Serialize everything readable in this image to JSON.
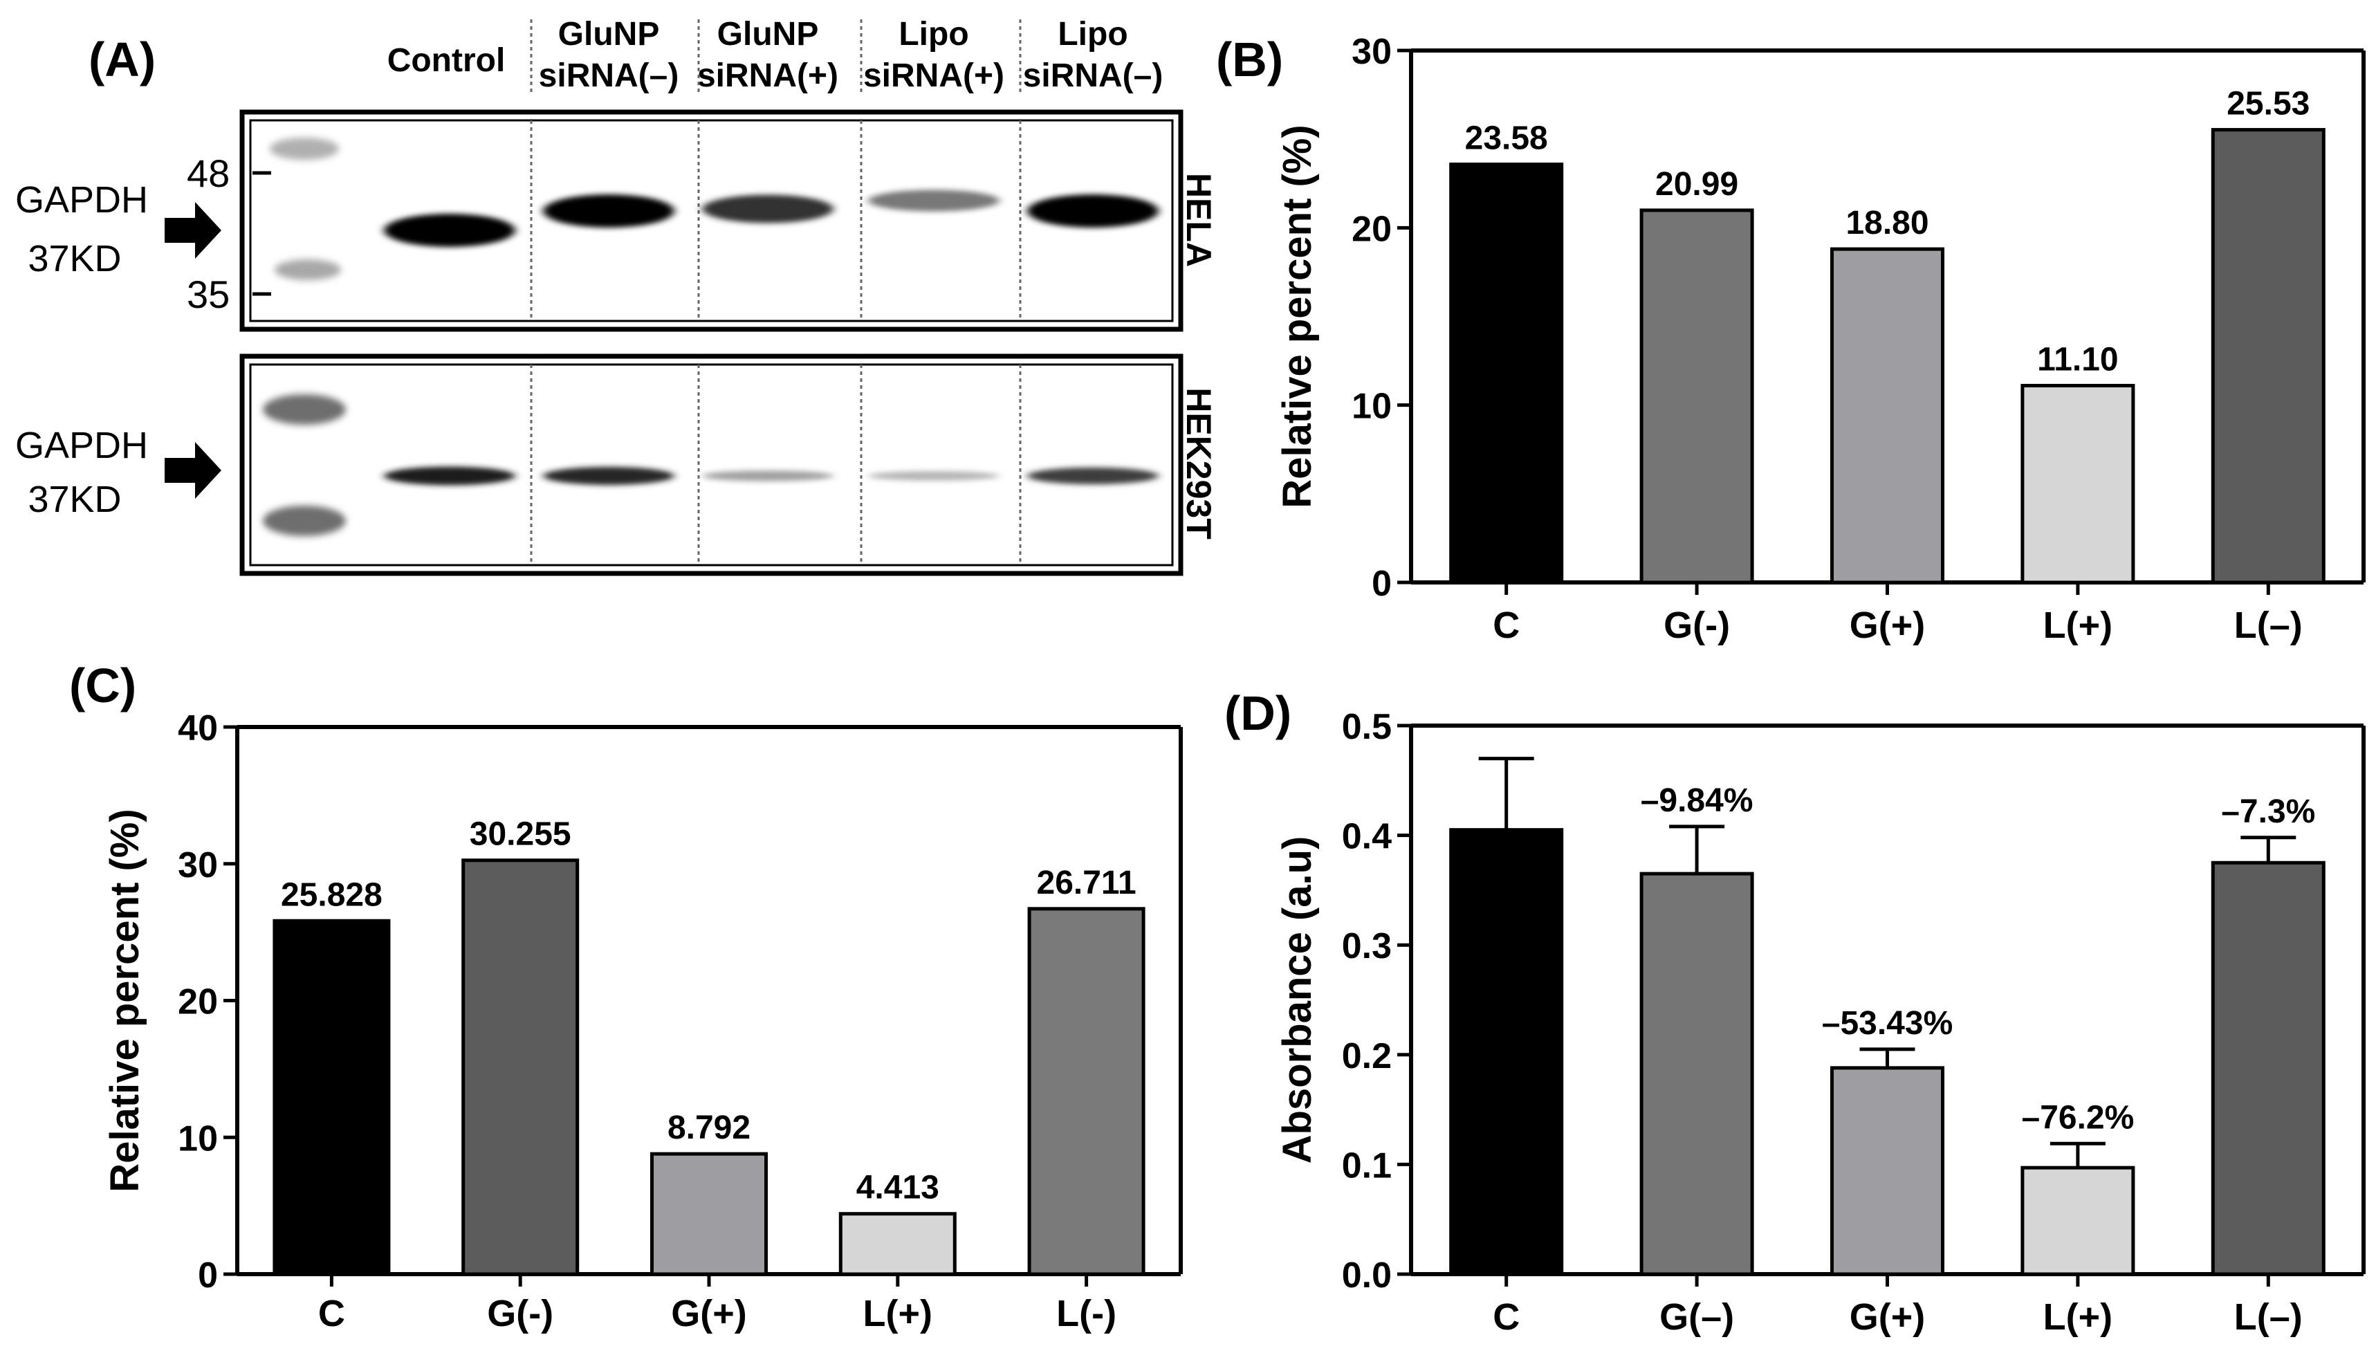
{
  "panel_labels": {
    "a": "(A)",
    "b": "(B)",
    "c": "(C)",
    "d": "(D)"
  },
  "blot": {
    "lanes": [
      {
        "l1": "Control",
        "l2": ""
      },
      {
        "l1": "GluNP",
        "l2": "siRNA(–)"
      },
      {
        "l1": "GluNP",
        "l2": "siRNA(+)"
      },
      {
        "l1": "Lipo",
        "l2": "siRNA(+)"
      },
      {
        "l1": "Lipo",
        "l2": "siRNA(–)"
      }
    ],
    "protein_label": "GAPDH",
    "kd_label": "37KD",
    "marker_high": "48",
    "marker_low": "35",
    "cell_line_top": "HELA",
    "cell_line_bottom": "HEK293T",
    "top_band_intensity": [
      1.0,
      1.0,
      0.75,
      0.4,
      1.0
    ],
    "bottom_band_intensity": [
      0.95,
      0.9,
      0.3,
      0.2,
      0.8
    ]
  },
  "chart_data": [
    {
      "panel": "B",
      "type": "bar",
      "categories": [
        "C",
        "G(-)",
        "G(+)",
        "L(+)",
        "L(–)"
      ],
      "values": [
        23.58,
        20.99,
        18.8,
        11.1,
        25.53
      ],
      "value_labels": [
        "23.58",
        "20.99",
        "18.80",
        "11.10",
        "25.53"
      ],
      "ylabel": "Relative percent (%)",
      "ylim": [
        0,
        30
      ],
      "yticks": [
        0,
        10,
        20,
        30
      ],
      "colors": [
        "#000000",
        "#757575",
        "#9d9da2",
        "#d6d6d6",
        "#5c5c5c"
      ]
    },
    {
      "panel": "C",
      "type": "bar",
      "categories": [
        "C",
        "G(-)",
        "G(+)",
        "L(+)",
        "L(-)"
      ],
      "values": [
        25.828,
        30.255,
        8.792,
        4.413,
        26.711
      ],
      "value_labels": [
        "25.828",
        "30.255",
        "8.792",
        "4.413",
        "26.711"
      ],
      "ylabel": "Relative percent (%)",
      "ylim": [
        0,
        40
      ],
      "yticks": [
        0,
        10,
        20,
        30,
        40
      ],
      "colors": [
        "#000000",
        "#5c5c5c",
        "#9d9da2",
        "#d6d6d6",
        "#7a7a7a"
      ]
    },
    {
      "panel": "D",
      "type": "bar",
      "categories": [
        "C",
        "G(–)",
        "G(+)",
        "L(+)",
        "L(–)"
      ],
      "values": [
        0.405,
        0.365,
        0.188,
        0.097,
        0.375
      ],
      "errors": [
        0.065,
        0.043,
        0.017,
        0.022,
        0.023
      ],
      "value_labels": [
        "",
        "–9.84%",
        "–53.43%",
        "–76.2%",
        "–7.3%"
      ],
      "ylabel": "Absorbance (a.u)",
      "ylim": [
        0,
        0.5
      ],
      "yticks": [
        0.0,
        0.1,
        0.2,
        0.3,
        0.4,
        0.5
      ],
      "ytick_labels": [
        "0.0",
        "0.1",
        "0.2",
        "0.3",
        "0.4",
        "0.5"
      ],
      "colors": [
        "#000000",
        "#757575",
        "#9d9da2",
        "#d6d6d6",
        "#5c5c5c"
      ]
    }
  ]
}
